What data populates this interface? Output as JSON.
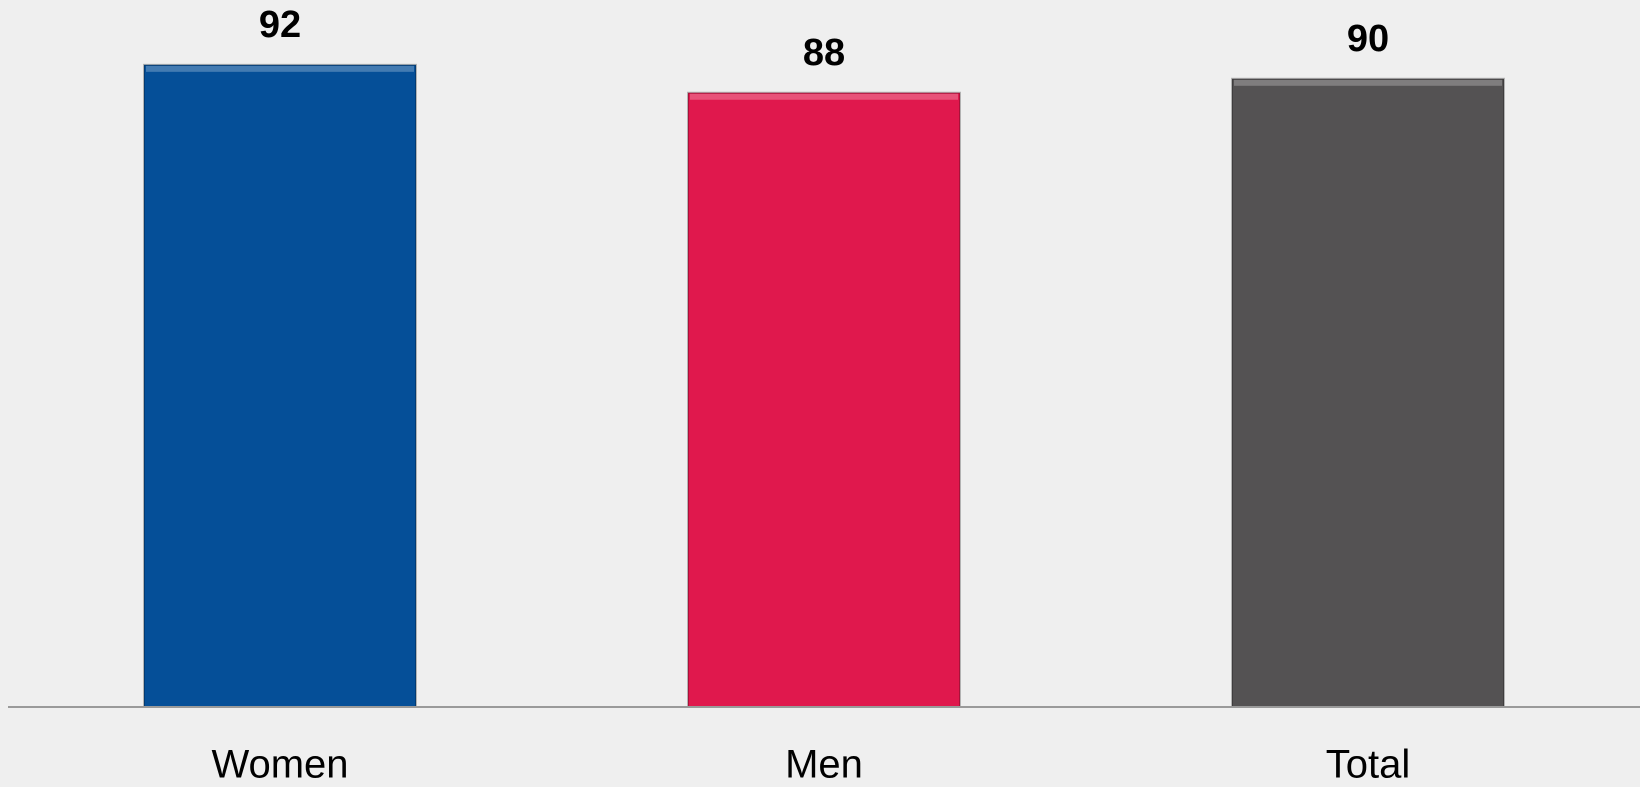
{
  "chart_data": {
    "type": "bar",
    "categories": [
      "Women",
      "Men",
      "Total"
    ],
    "values": [
      92,
      88,
      90
    ],
    "colors": [
      "#054f98",
      "#e0184d",
      "#545253"
    ]
  }
}
